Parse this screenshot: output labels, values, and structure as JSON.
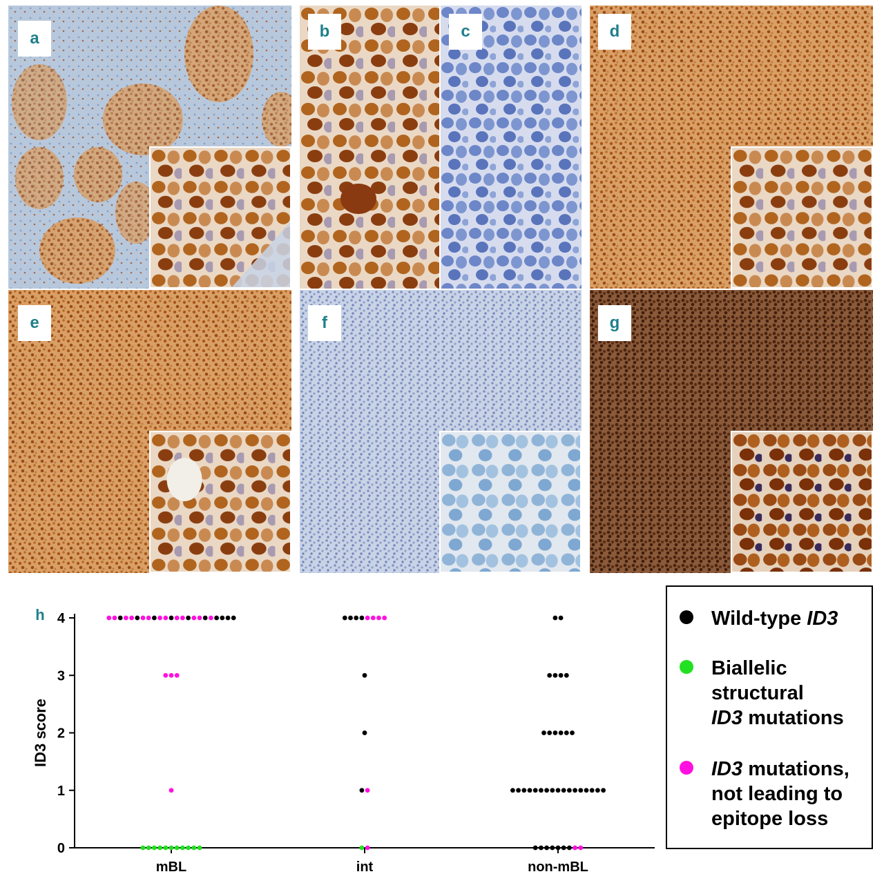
{
  "panels": [
    {
      "label": "a"
    },
    {
      "label": "b"
    },
    {
      "label": "c"
    },
    {
      "label": "d"
    },
    {
      "label": "e"
    },
    {
      "label": "f"
    },
    {
      "label": "g"
    }
  ],
  "colors": {
    "label_text": "#1f7f8a",
    "wild_type": "#000000",
    "biallelic": "#22e022",
    "mutation_no_loss": "#ff10e0"
  },
  "legend": {
    "items": [
      {
        "key": "wild_type",
        "color": "#000000",
        "parts": [
          "Wild-type ",
          "ID3"
        ],
        "italic": [
          false,
          true
        ]
      },
      {
        "key": "biallelic",
        "color": "#22e022",
        "lines": [
          "Biallelic",
          "structural"
        ],
        "line3_italic": "ID3",
        "line3_rest": " mutations"
      },
      {
        "key": "mutation_no_loss",
        "color": "#ff10e0",
        "line1_italic": "ID3",
        "line1_rest": " mutations,",
        "lines": [
          "not leading to",
          "epitope loss"
        ]
      }
    ]
  },
  "chart_data": {
    "type": "scatter",
    "panel_label": "h",
    "ylabel": "ID3 score",
    "xlabel": "",
    "categories": [
      "mBL",
      "int",
      "non-mBL"
    ],
    "y_ticks": [
      "0",
      "1",
      "2",
      "3",
      "4"
    ],
    "ylim": [
      0,
      4
    ],
    "series": [
      {
        "name": "Wild-type ID3",
        "color_key": "wild_type",
        "points": [
          {
            "category": "mBL",
            "y": 4,
            "count": 10
          },
          {
            "category": "int",
            "y": 4,
            "count": 4
          },
          {
            "category": "int",
            "y": 3,
            "count": 1
          },
          {
            "category": "int",
            "y": 2,
            "count": 1
          },
          {
            "category": "int",
            "y": 1,
            "count": 1
          },
          {
            "category": "non-mBL",
            "y": 4,
            "count": 2
          },
          {
            "category": "non-mBL",
            "y": 3,
            "count": 4
          },
          {
            "category": "non-mBL",
            "y": 2,
            "count": 6
          },
          {
            "category": "non-mBL",
            "y": 1,
            "count": 17
          },
          {
            "category": "non-mBL",
            "y": 0,
            "count": 7
          }
        ]
      },
      {
        "name": "Biallelic structural ID3 mutations",
        "color_key": "biallelic",
        "points": [
          {
            "category": "mBL",
            "y": 0,
            "count": 11
          },
          {
            "category": "int",
            "y": 0,
            "count": 1
          }
        ]
      },
      {
        "name": "ID3 mutations, not leading to epitope loss",
        "color_key": "mutation_no_loss",
        "points": [
          {
            "category": "mBL",
            "y": 4,
            "count": 13
          },
          {
            "category": "mBL",
            "y": 3,
            "count": 3
          },
          {
            "category": "mBL",
            "y": 1,
            "count": 1
          },
          {
            "category": "int",
            "y": 4,
            "count": 4
          },
          {
            "category": "int",
            "y": 1,
            "count": 1
          },
          {
            "category": "int",
            "y": 0,
            "count": 1
          },
          {
            "category": "non-mBL",
            "y": 0,
            "count": 2
          }
        ]
      }
    ]
  }
}
